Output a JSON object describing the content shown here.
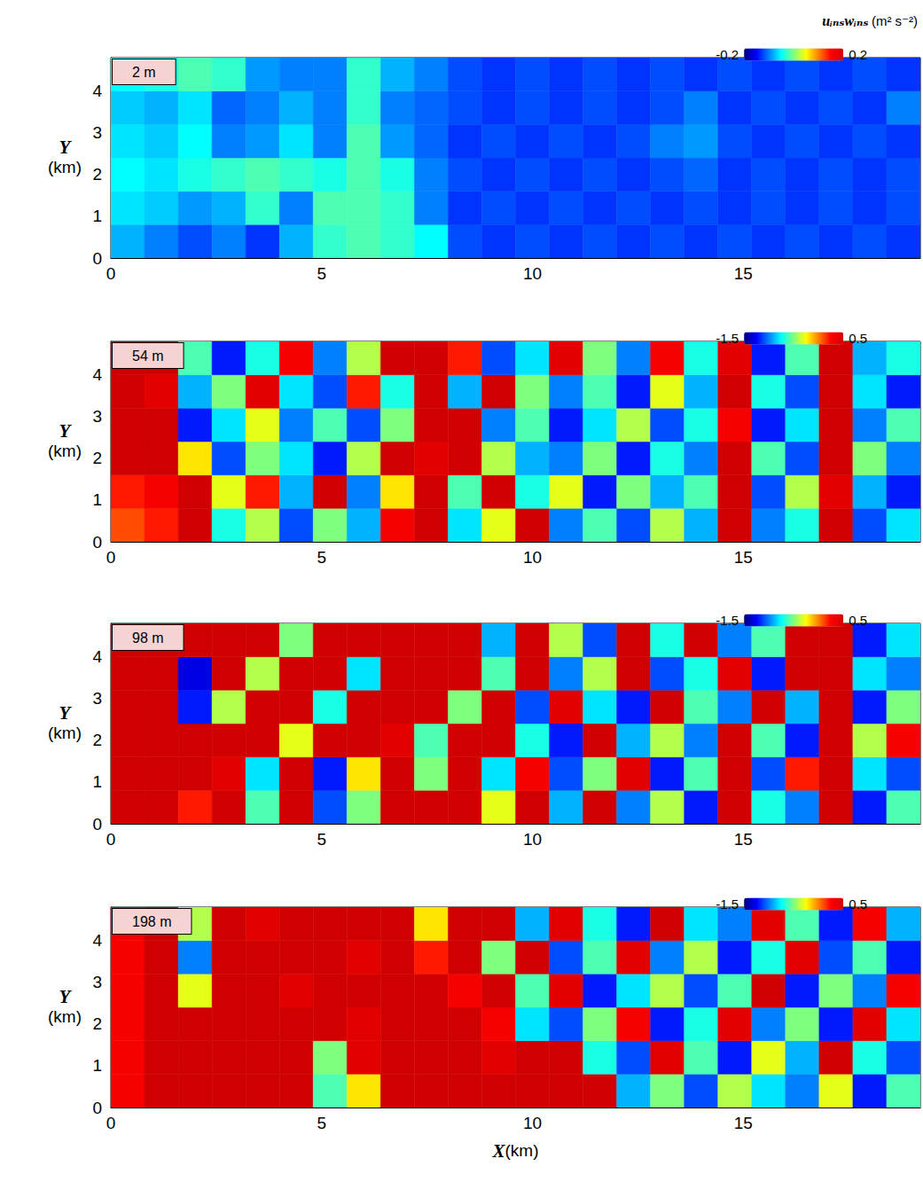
{
  "chart_data": [
    {
      "type": "heatmap",
      "label": "2 m",
      "ylabel": "Y (km)",
      "grid": false,
      "xlim": [
        0,
        19.2
      ],
      "ylim": [
        0,
        4.8
      ],
      "xticks": [
        0,
        5,
        10,
        15
      ],
      "yticks": [
        0,
        1,
        2,
        3,
        4
      ],
      "colorbar": {
        "label": "uᵢₙₛwᵢₙₛ (m² s⁻²)",
        "range": [
          -0.2,
          0.2
        ],
        "ticks": [
          -0.2,
          0.2
        ]
      },
      "x_edges": [
        0,
        0.8,
        1.6,
        2.4,
        3.2,
        4.0,
        4.8,
        5.6,
        6.4,
        7.2,
        8.0,
        8.8,
        9.6,
        10.4,
        11.2,
        12.0,
        12.8,
        13.6,
        14.4,
        15.2,
        16.0,
        16.8,
        17.6,
        18.4,
        19.2
      ],
      "y_edges": [
        0,
        0.8,
        1.6,
        2.4,
        3.2,
        4.0,
        4.8
      ],
      "cells": [
        [
          -0.08,
          -0.1,
          -0.12,
          -0.1,
          -0.13,
          -0.08,
          -0.03,
          -0.02,
          -0.03,
          -0.05,
          -0.12,
          -0.13,
          -0.12,
          -0.13,
          -0.12,
          -0.13,
          -0.12,
          -0.13,
          -0.12,
          -0.13,
          -0.12,
          -0.13,
          -0.12,
          -0.13
        ],
        [
          -0.06,
          -0.07,
          -0.09,
          -0.08,
          -0.03,
          -0.1,
          -0.02,
          -0.02,
          -0.03,
          -0.1,
          -0.13,
          -0.12,
          -0.13,
          -0.12,
          -0.13,
          -0.12,
          -0.13,
          -0.12,
          -0.13,
          -0.12,
          -0.13,
          -0.12,
          -0.13,
          -0.12
        ],
        [
          -0.05,
          -0.06,
          -0.04,
          -0.03,
          -0.02,
          -0.03,
          -0.04,
          -0.02,
          -0.04,
          -0.1,
          -0.12,
          -0.13,
          -0.12,
          -0.13,
          -0.12,
          -0.13,
          -0.12,
          -0.11,
          -0.13,
          -0.12,
          -0.13,
          -0.12,
          -0.13,
          -0.12
        ],
        [
          -0.06,
          -0.07,
          -0.05,
          -0.1,
          -0.09,
          -0.06,
          -0.1,
          -0.02,
          -0.09,
          -0.11,
          -0.13,
          -0.12,
          -0.13,
          -0.12,
          -0.13,
          -0.12,
          -0.1,
          -0.09,
          -0.12,
          -0.13,
          -0.12,
          -0.13,
          -0.12,
          -0.13
        ],
        [
          -0.07,
          -0.08,
          -0.06,
          -0.11,
          -0.1,
          -0.08,
          -0.1,
          -0.03,
          -0.1,
          -0.11,
          -0.12,
          -0.13,
          -0.12,
          -0.13,
          -0.12,
          -0.13,
          -0.12,
          -0.1,
          -0.13,
          -0.12,
          -0.13,
          -0.12,
          -0.13,
          -0.1
        ],
        [
          -0.05,
          -0.04,
          -0.02,
          -0.03,
          -0.09,
          -0.1,
          -0.1,
          -0.03,
          -0.08,
          -0.1,
          -0.12,
          -0.13,
          -0.12,
          -0.13,
          -0.12,
          -0.13,
          -0.12,
          -0.13,
          -0.12,
          -0.13,
          -0.12,
          -0.13,
          -0.12,
          -0.13
        ]
      ]
    },
    {
      "type": "heatmap",
      "label": "54 m",
      "ylabel": "Y (km)",
      "grid": false,
      "xlim": [
        0,
        19.2
      ],
      "ylim": [
        0,
        4.8
      ],
      "xticks": [
        0,
        5,
        10,
        15
      ],
      "yticks": [
        0,
        1,
        2,
        3,
        4
      ],
      "colorbar": {
        "range": [
          -1.5,
          0.5
        ],
        "ticks": [
          -1.5,
          0.5
        ]
      },
      "x_edges": [
        0,
        0.8,
        1.6,
        2.4,
        3.2,
        4.0,
        4.8,
        5.6,
        6.4,
        7.2,
        8.0,
        8.8,
        9.6,
        10.4,
        11.2,
        12.0,
        12.8,
        13.6,
        14.4,
        15.2,
        16.0,
        16.8,
        17.6,
        18.4,
        19.2
      ],
      "y_edges": [
        0,
        0.8,
        1.6,
        2.4,
        3.2,
        4.0,
        4.8
      ],
      "cells": [
        [
          0.1,
          0.2,
          0.5,
          -0.7,
          -0.4,
          -1.1,
          -0.5,
          -0.9,
          0.3,
          0.5,
          -0.8,
          -0.3,
          0.5,
          -1.0,
          -0.6,
          -1.1,
          -0.4,
          -0.9,
          0.5,
          -1.0,
          -0.7,
          0.5,
          -1.1,
          -0.8
        ],
        [
          0.2,
          0.3,
          0.5,
          -0.3,
          0.2,
          -0.9,
          0.5,
          -1.0,
          -0.2,
          0.5,
          -0.6,
          0.5,
          -0.7,
          -0.3,
          -1.2,
          -0.5,
          -0.9,
          -0.6,
          0.5,
          -1.1,
          -0.4,
          0.4,
          -0.9,
          -1.2
        ],
        [
          0.5,
          0.5,
          -0.2,
          -1.1,
          -0.5,
          -0.8,
          -1.2,
          -0.4,
          0.5,
          0.4,
          0.5,
          -0.4,
          -0.9,
          -1.0,
          -0.5,
          -1.2,
          -0.7,
          -1.0,
          0.5,
          -0.6,
          -1.1,
          0.5,
          -0.5,
          -1.0
        ],
        [
          0.5,
          0.5,
          -1.2,
          -0.8,
          -0.3,
          -1.0,
          -0.6,
          -1.1,
          -0.5,
          0.5,
          0.5,
          -1.0,
          -0.6,
          -1.2,
          -0.8,
          -0.4,
          -1.1,
          -0.7,
          0.3,
          -1.2,
          -0.8,
          0.5,
          -1.0,
          -0.6
        ],
        [
          0.5,
          0.4,
          -0.9,
          -0.5,
          0.4,
          -0.8,
          -1.1,
          0.2,
          -0.7,
          0.5,
          -0.9,
          0.5,
          -0.5,
          -1.0,
          -0.6,
          -1.2,
          -0.3,
          -0.9,
          0.5,
          -0.7,
          -1.1,
          0.5,
          -0.8,
          -1.2
        ],
        [
          0.5,
          0.5,
          -0.6,
          -1.2,
          -0.7,
          0.3,
          -1.0,
          -0.4,
          0.5,
          0.5,
          0.2,
          -1.1,
          -0.8,
          0.4,
          -0.5,
          -1.0,
          0.3,
          -0.7,
          0.4,
          -1.2,
          -0.6,
          0.5,
          -0.9,
          -0.7
        ]
      ]
    },
    {
      "type": "heatmap",
      "label": "98 m",
      "ylabel": "Y (km)",
      "grid": false,
      "xlim": [
        0,
        19.2
      ],
      "ylim": [
        0,
        4.8
      ],
      "xticks": [
        0,
        5,
        10,
        15
      ],
      "yticks": [
        0,
        1,
        2,
        3,
        4
      ],
      "colorbar": {
        "range": [
          -1.5,
          0.5
        ],
        "ticks": [
          -1.5,
          0.5
        ]
      },
      "x_edges": [
        0,
        0.8,
        1.6,
        2.4,
        3.2,
        4.0,
        4.8,
        5.6,
        6.4,
        7.2,
        8.0,
        8.8,
        9.6,
        10.4,
        11.2,
        12.0,
        12.8,
        13.6,
        14.4,
        15.2,
        16.0,
        16.8,
        17.6,
        18.4,
        19.2
      ],
      "y_edges": [
        0,
        0.8,
        1.6,
        2.4,
        3.2,
        4.0,
        4.8
      ],
      "cells": [
        [
          0.5,
          0.5,
          0.2,
          0.5,
          -0.6,
          0.5,
          -1.1,
          -0.5,
          0.5,
          0.5,
          0.5,
          -0.3,
          0.5,
          -0.9,
          0.5,
          -1.0,
          -0.4,
          -1.2,
          0.5,
          -0.7,
          -1.0,
          0.5,
          -1.2,
          -0.6
        ],
        [
          0.5,
          0.5,
          0.5,
          0.4,
          -0.8,
          0.5,
          -1.2,
          -0.2,
          0.5,
          -0.5,
          0.5,
          -0.8,
          0.3,
          -1.1,
          -0.5,
          0.4,
          -1.2,
          -0.6,
          0.5,
          -1.1,
          0.2,
          0.5,
          -0.8,
          -1.1
        ],
        [
          0.5,
          0.5,
          0.5,
          0.5,
          0.5,
          -0.3,
          0.5,
          0.5,
          0.4,
          -0.6,
          0.5,
          0.5,
          -0.7,
          -1.2,
          0.5,
          -0.9,
          -0.4,
          -1.0,
          0.5,
          -0.6,
          -1.2,
          0.5,
          -0.4,
          0.3
        ],
        [
          0.5,
          0.5,
          -1.2,
          -0.4,
          0.5,
          0.5,
          -0.7,
          0.5,
          0.5,
          0.5,
          -0.5,
          0.5,
          -1.1,
          0.4,
          -0.8,
          -1.2,
          0.5,
          -0.6,
          -1.0,
          0.5,
          -0.9,
          0.5,
          -1.2,
          -0.5
        ],
        [
          0.5,
          0.5,
          -1.3,
          0.5,
          -0.4,
          0.5,
          0.5,
          -0.8,
          0.5,
          0.5,
          0.5,
          -0.6,
          0.5,
          -1.0,
          -0.4,
          0.5,
          -1.1,
          -0.7,
          0.4,
          -1.2,
          0.5,
          0.5,
          -0.8,
          -1.0
        ],
        [
          0.5,
          0.5,
          0.5,
          0.5,
          0.5,
          -0.5,
          0.5,
          0.5,
          0.5,
          0.5,
          0.5,
          -0.9,
          0.5,
          -0.4,
          -1.1,
          0.5,
          -0.7,
          0.5,
          -1.0,
          -0.6,
          0.5,
          0.5,
          -1.2,
          -0.8
        ]
      ]
    },
    {
      "type": "heatmap",
      "label": "198 m",
      "ylabel": "Y (km)",
      "xlabel": "X(km)",
      "grid": false,
      "xlim": [
        0,
        19.2
      ],
      "ylim": [
        0,
        4.8
      ],
      "xticks": [
        0,
        5,
        10,
        15
      ],
      "yticks": [
        0,
        1,
        2,
        3,
        4
      ],
      "colorbar": {
        "range": [
          -1.5,
          0.5
        ],
        "ticks": [
          -1.5,
          0.5
        ]
      },
      "x_edges": [
        0,
        0.8,
        1.6,
        2.4,
        3.2,
        4.0,
        4.8,
        5.6,
        6.4,
        7.2,
        8.0,
        8.8,
        9.6,
        10.4,
        11.2,
        12.0,
        12.8,
        13.6,
        14.4,
        15.2,
        16.0,
        16.8,
        17.6,
        18.4,
        19.2
      ],
      "y_edges": [
        0,
        0.8,
        1.6,
        2.4,
        3.2,
        4.0,
        4.8
      ],
      "cells": [
        [
          0.3,
          0.5,
          0.5,
          0.5,
          0.5,
          0.5,
          -0.6,
          -0.2,
          0.5,
          0.5,
          0.5,
          0.5,
          0.5,
          0.5,
          0.5,
          -0.9,
          -0.5,
          -1.1,
          -0.4,
          -0.8,
          -1.0,
          -0.3,
          -1.2,
          -0.6
        ],
        [
          0.3,
          0.5,
          0.5,
          0.5,
          0.5,
          0.5,
          -0.5,
          0.4,
          0.5,
          0.5,
          0.5,
          0.4,
          0.5,
          0.5,
          -0.7,
          -1.1,
          0.4,
          -0.6,
          -1.2,
          -0.3,
          -0.9,
          0.5,
          -0.7,
          -1.1
        ],
        [
          0.3,
          0.5,
          0.5,
          0.5,
          0.5,
          0.5,
          0.5,
          0.4,
          0.5,
          0.5,
          0.5,
          0.3,
          -0.8,
          -1.1,
          -0.5,
          0.3,
          -1.2,
          -0.7,
          0.4,
          -1.0,
          -0.5,
          -1.2,
          0.4,
          -0.8
        ],
        [
          0.3,
          0.5,
          -0.3,
          0.5,
          0.5,
          0.4,
          0.5,
          0.5,
          0.5,
          0.5,
          0.3,
          0.5,
          -0.6,
          0.4,
          -1.2,
          -0.8,
          -0.4,
          -1.1,
          -0.6,
          0.5,
          -1.2,
          -0.5,
          -1.0,
          0.3
        ],
        [
          0.3,
          0.5,
          -1.0,
          0.5,
          0.5,
          0.5,
          0.5,
          0.4,
          0.5,
          0.2,
          0.5,
          -0.5,
          0.5,
          -1.1,
          -0.6,
          0.4,
          -1.0,
          -0.4,
          -1.2,
          -0.7,
          0.4,
          -1.1,
          -0.6,
          -1.2
        ],
        [
          0.3,
          0.5,
          -0.4,
          0.5,
          0.4,
          0.5,
          0.5,
          0.5,
          0.5,
          -0.2,
          0.5,
          0.5,
          -0.9,
          0.4,
          -0.7,
          -1.2,
          0.5,
          -0.8,
          -1.0,
          0.4,
          -0.6,
          -1.2,
          0.3,
          -0.9
        ]
      ]
    }
  ]
}
